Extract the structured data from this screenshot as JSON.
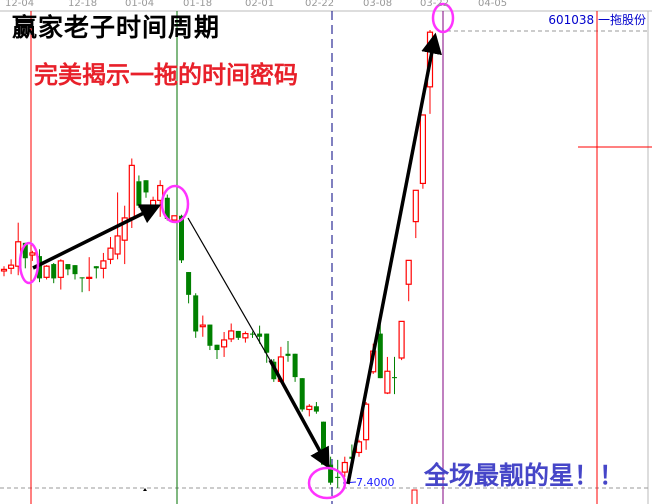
{
  "chart_data": {
    "type": "candlestick",
    "title": "赢家老子时间周期",
    "subtitle": "完美揭示一拖的时间密码",
    "annotation": "全场最靓的星！！",
    "stock_label": "601038 一拖股份",
    "low_label": "7.4000",
    "x_tick_labels": [
      "12-04",
      "12-18",
      "01-04",
      "01-18",
      "02-01",
      "02-22",
      "03-08",
      "03-22",
      "04-05"
    ],
    "y_range": [
      7.4,
      16.05
    ],
    "colors": {
      "up": "#ff0000",
      "down": "#008000",
      "highlight": "#ff33ff",
      "arrow": "#000000"
    },
    "candles": [
      [
        11.49,
        11.52,
        11.58,
        11.39
      ],
      [
        11.54,
        11.6,
        11.71,
        11.43
      ],
      [
        11.58,
        12.04,
        12.4,
        11.41
      ],
      [
        12.02,
        11.73,
        12.02,
        11.54
      ],
      [
        11.79,
        11.83,
        11.87,
        11.68
      ],
      [
        11.77,
        11.35,
        11.9,
        11.28
      ],
      [
        11.37,
        11.58,
        11.6,
        11.33
      ],
      [
        11.62,
        11.35,
        11.64,
        11.26
      ],
      [
        11.37,
        11.68,
        11.71,
        11.14
      ],
      [
        11.62,
        11.52,
        11.62,
        11.41
      ],
      [
        11.6,
        11.43,
        11.6,
        11.33
      ],
      [
        11.37,
        11.35,
        11.37,
        11.09
      ],
      [
        11.35,
        11.37,
        11.75,
        11.11
      ],
      [
        11.58,
        11.54,
        11.58,
        11.35
      ],
      [
        11.54,
        11.68,
        11.83,
        11.35
      ],
      [
        11.71,
        11.92,
        12.13,
        11.62
      ],
      [
        11.81,
        12.15,
        12.97,
        11.71
      ],
      [
        12.07,
        12.49,
        12.72,
        11.62
      ],
      [
        12.49,
        13.48,
        13.61,
        12.3
      ],
      [
        13.18,
        12.72,
        13.29,
        12.68
      ],
      [
        13.2,
        12.97,
        13.2,
        12.87
      ],
      [
        12.68,
        12.82,
        12.89,
        12.59
      ],
      [
        12.82,
        13.1,
        13.2,
        12.51
      ],
      [
        12.87,
        12.47,
        12.93,
        12.44
      ],
      [
        12.45,
        12.53,
        12.53,
        12.44
      ],
      [
        12.53,
        11.69,
        12.55,
        11.64
      ],
      [
        11.47,
        11.04,
        11.47,
        10.88
      ],
      [
        11.03,
        10.35,
        11.07,
        10.23
      ],
      [
        10.44,
        10.47,
        10.65,
        10.25
      ],
      [
        10.48,
        10.08,
        10.48,
        10.0
      ],
      [
        10.1,
        10.0,
        10.1,
        9.83
      ],
      [
        10.06,
        10.19,
        10.34,
        9.87
      ],
      [
        10.21,
        10.36,
        10.5,
        10.15
      ],
      [
        10.36,
        10.23,
        10.36,
        10.19
      ],
      [
        10.23,
        10.31,
        10.35,
        10.14
      ],
      [
        10.31,
        10.29,
        10.35,
        10.23
      ],
      [
        10.31,
        10.25,
        10.46,
        10.12
      ],
      [
        10.31,
        9.95,
        10.31,
        9.76
      ],
      [
        9.78,
        9.45,
        9.83,
        9.4
      ],
      [
        9.41,
        9.87,
        10.06,
        9.38
      ],
      [
        9.93,
        9.89,
        10.17,
        9.78
      ],
      [
        9.93,
        9.49,
        9.93,
        9.4
      ],
      [
        9.47,
        8.88,
        9.47,
        8.84
      ],
      [
        8.88,
        8.94,
        8.98,
        8.75
      ],
      [
        8.94,
        8.84,
        9.02,
        8.8
      ],
      [
        8.65,
        7.84,
        8.65,
        7.84
      ],
      [
        7.84,
        7.5,
        7.99,
        7.46
      ],
      [
        7.61,
        7.59,
        7.93,
        7.4
      ],
      [
        7.7,
        7.88,
        7.99,
        7.61
      ],
      [
        7.99,
        7.95,
        8.22,
        7.78
      ],
      [
        8.07,
        8.27,
        8.31,
        7.99
      ],
      [
        8.31,
        8.98,
        9.02,
        8.12
      ],
      [
        9.59,
        9.98,
        10.12,
        9.55
      ],
      [
        10.31,
        9.47,
        10.63,
        9.47
      ],
      [
        9.19,
        9.6,
        9.87,
        9.17
      ],
      [
        9.49,
        9.47,
        9.87,
        9.17
      ],
      [
        9.85,
        10.54,
        10.54,
        9.81
      ],
      [
        11.24,
        11.69,
        11.69,
        10.92
      ],
      [
        12.42,
        13.01,
        13.01,
        12.11
      ],
      [
        13.14,
        14.43,
        14.43,
        13.04
      ],
      [
        14.96,
        15.99,
        16.03,
        14.45
      ]
    ]
  }
}
